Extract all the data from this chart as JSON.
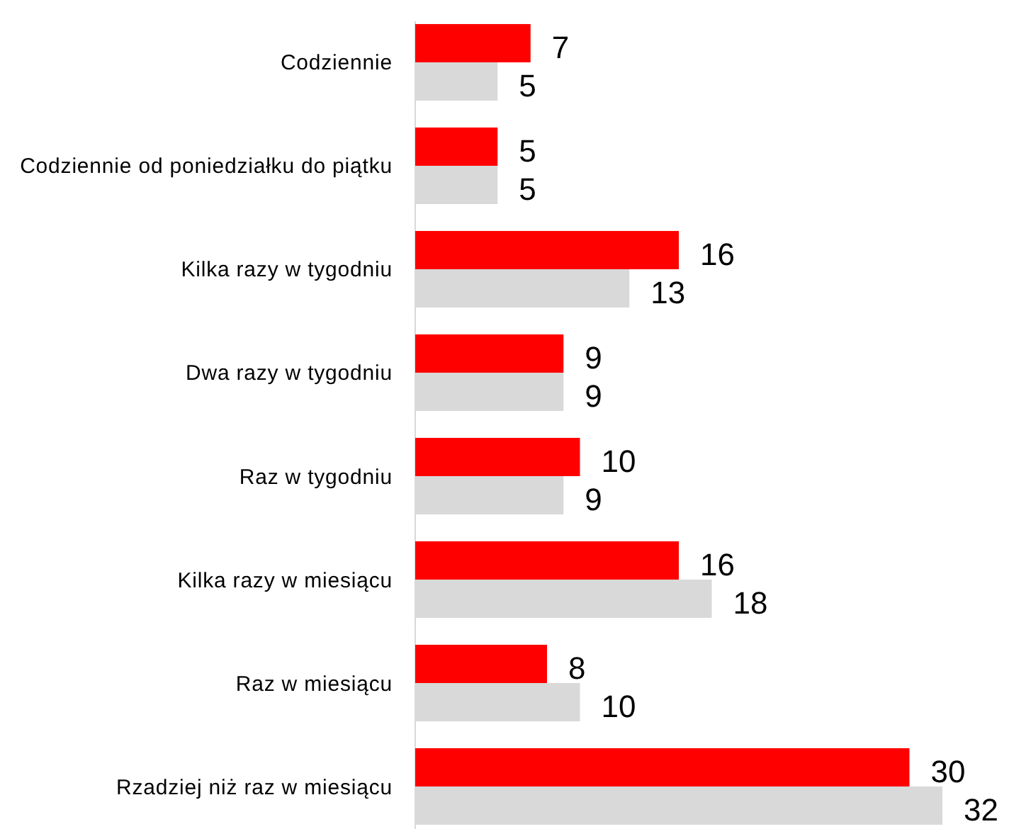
{
  "chart_data": {
    "type": "bar",
    "orientation": "horizontal",
    "categories": [
      "Codziennie",
      "Codziennie od poniedziałku do piątku",
      "Kilka razy w tygodniu",
      "Dwa razy w tygodniu",
      "Raz w tygodniu",
      "Kilka razy w miesiącu",
      "Raz w miesiącu",
      "Rzadziej niż raz w miesiącu"
    ],
    "series": [
      {
        "color": "#ff0000",
        "values": [
          7,
          5,
          16,
          9,
          10,
          16,
          8,
          30
        ]
      },
      {
        "color": "#d9d9d9",
        "values": [
          5,
          5,
          13,
          9,
          9,
          18,
          10,
          32
        ]
      }
    ],
    "data_labels": true
  }
}
